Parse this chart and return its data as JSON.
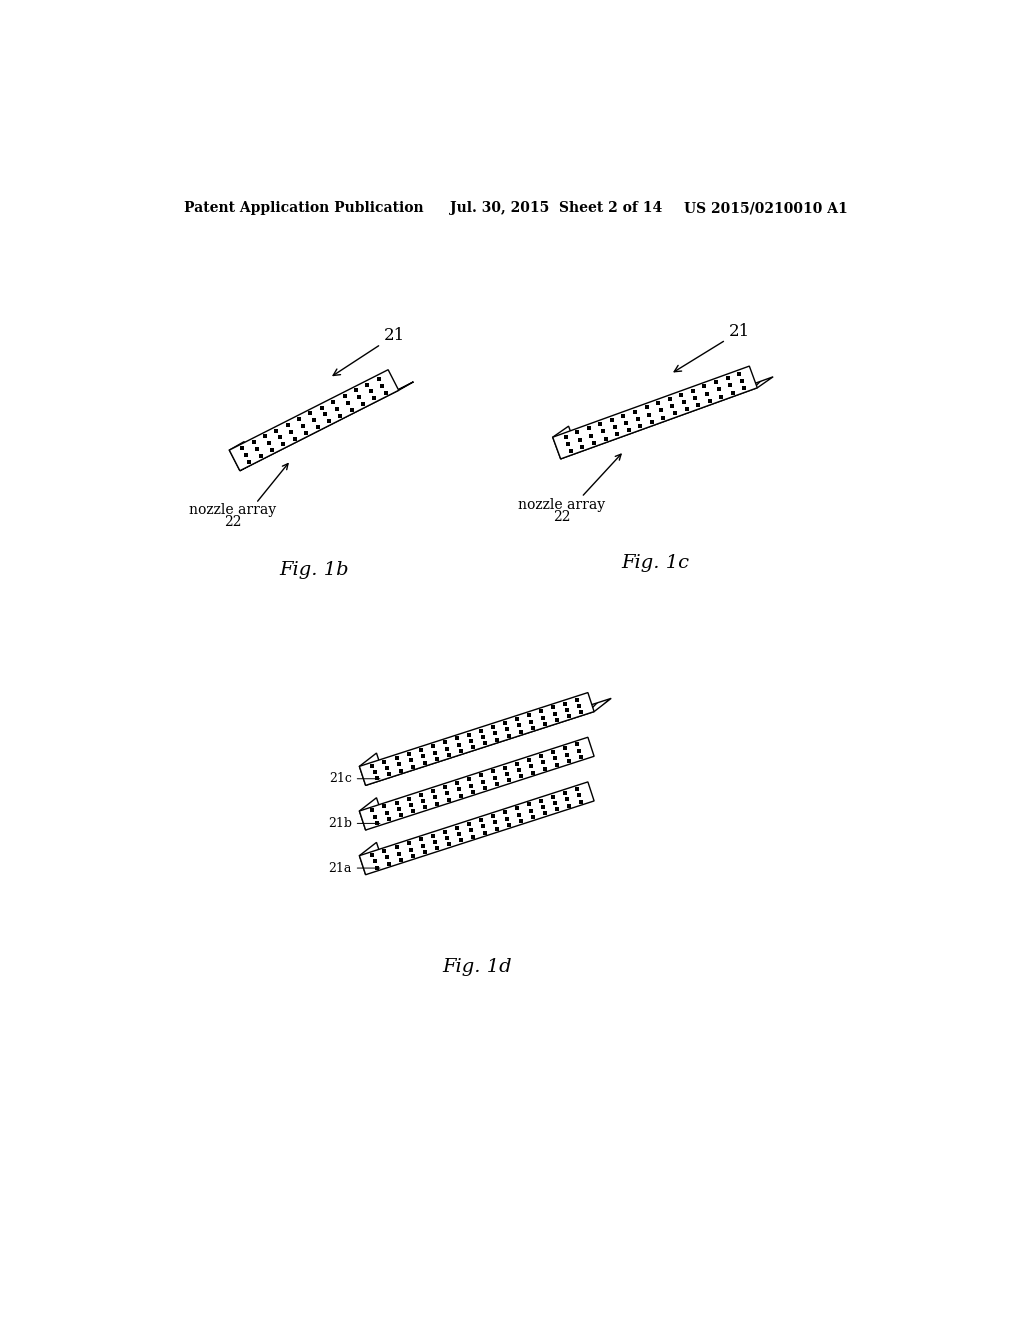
{
  "background_color": "#ffffff",
  "header_text": "Patent Application Publication",
  "header_date": "Jul. 30, 2015  Sheet 2 of 14",
  "header_patent": "US 2015/0210010 A1",
  "fig1b_label": "Fig. 1b",
  "fig1c_label": "Fig. 1c",
  "fig1d_label": "Fig. 1d",
  "label_21": "21",
  "label_22": "22",
  "label_nozzle": "nozzle array",
  "label_21a": "21a",
  "label_21b": "21b",
  "label_21c": "21c",
  "line_color": "#000000"
}
